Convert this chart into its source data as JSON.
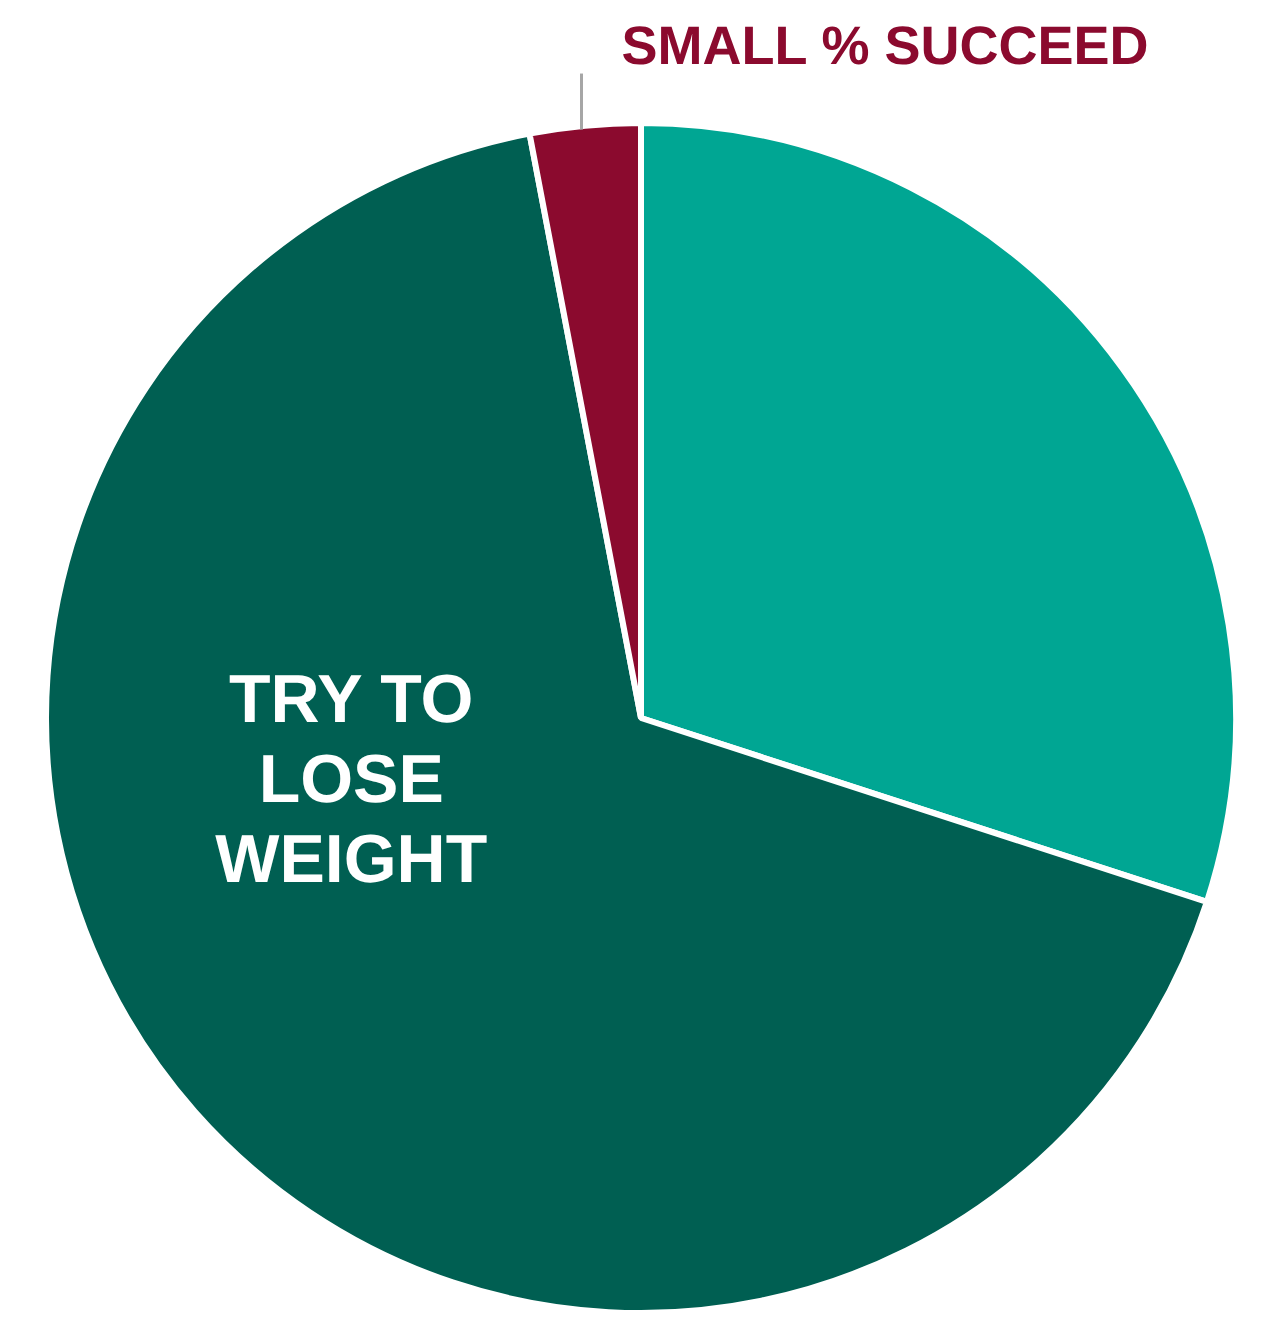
{
  "chart_data": {
    "type": "pie",
    "categories": [
      null,
      "TRY TO LOSE WEIGHT",
      "SMALL % SUCCEED"
    ],
    "values": [
      30,
      67,
      3
    ],
    "colors": [
      "#00a693",
      "#005f52",
      "#8b0a2e"
    ],
    "legend": false
  }
}
